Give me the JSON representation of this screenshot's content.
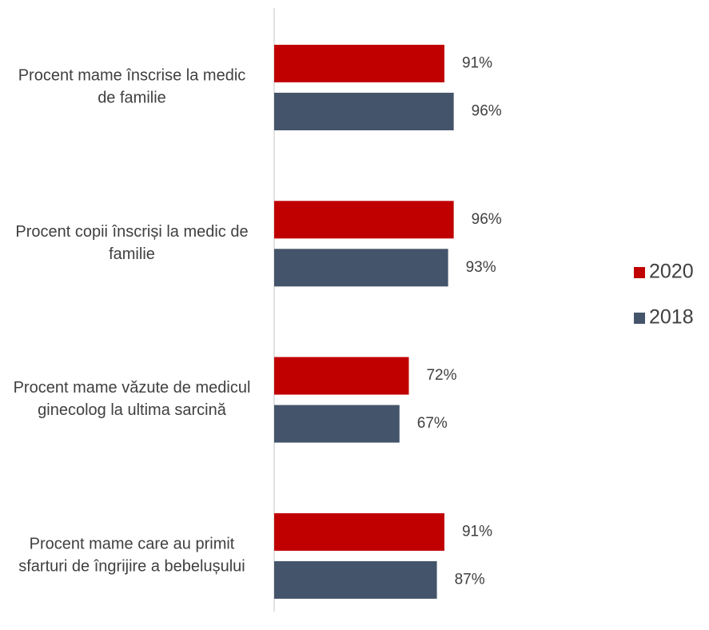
{
  "chart_data": {
    "type": "bar",
    "orientation": "horizontal",
    "categories": [
      "Procent mame înscrise la medic de familie",
      "Procent copii înscriși la medic de familie",
      "Procent mame văzute de medicul ginecolog la ultima sarcină",
      "Procent mame care au primit sfarturi de îngrijire a bebelușului"
    ],
    "series": [
      {
        "name": "2020",
        "color": "#c00000",
        "values": [
          91,
          96,
          72,
          91
        ],
        "value_labels": [
          "91%",
          "96%",
          "72%",
          "91%"
        ]
      },
      {
        "name": "2018",
        "color": "#44546a",
        "values": [
          96,
          93,
          67,
          87
        ],
        "value_labels": [
          "96%",
          "93%",
          "67%",
          "87%"
        ]
      }
    ],
    "xlim": [
      0,
      100
    ],
    "legend": "right"
  }
}
